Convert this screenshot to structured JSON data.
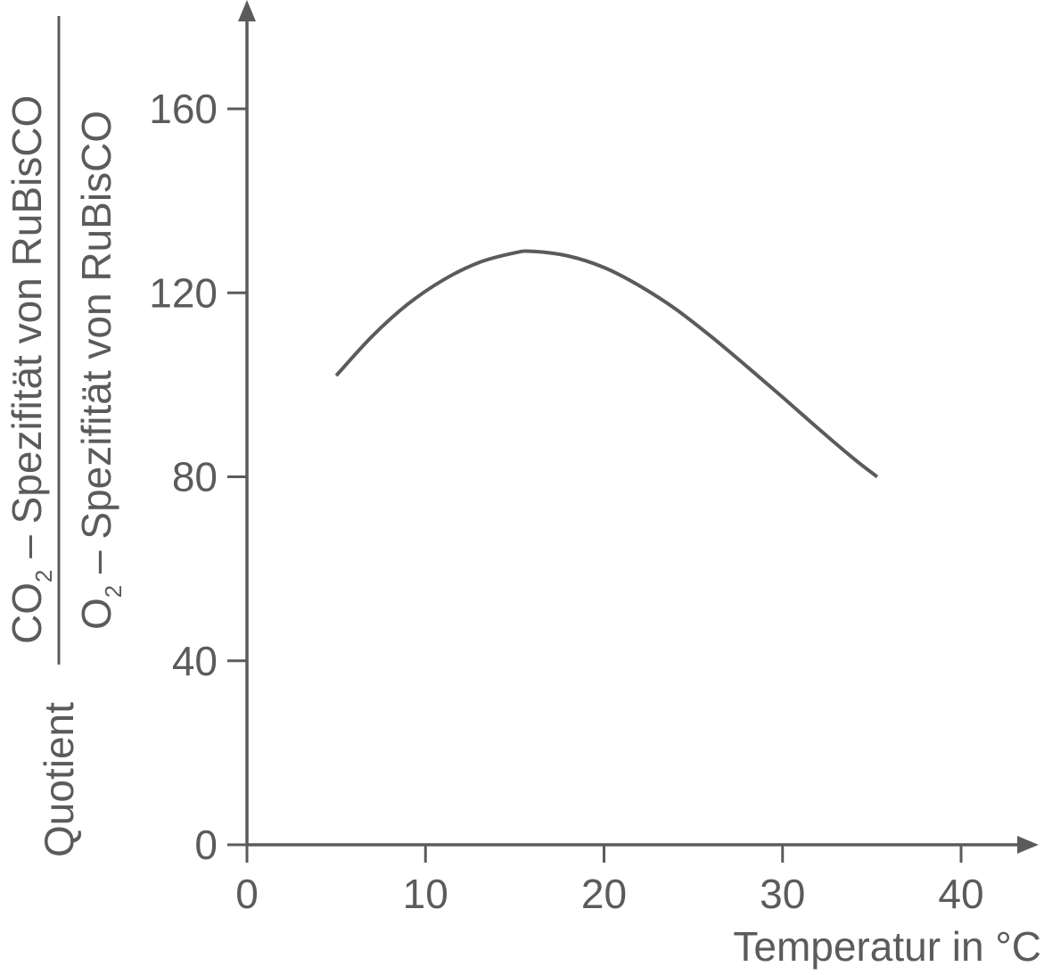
{
  "chart_data": {
    "type": "line",
    "xlabel": "Temperatur in °C",
    "ylabel": {
      "prefix": "Quotient",
      "numerator": {
        "base": "CO",
        "sub": "2",
        "rest": " – Spezifität von RuBisCO"
      },
      "denominator": {
        "base": "O",
        "sub": "2",
        "rest": " – Spezifität von RuBisCO"
      }
    },
    "xlim": [
      0,
      40
    ],
    "ylim": [
      0,
      160
    ],
    "x_ticks": [
      "0",
      "10",
      "20",
      "30",
      "40"
    ],
    "y_ticks": [
      "0",
      "40",
      "80",
      "120",
      "160"
    ],
    "grid": false,
    "series": [
      {
        "x": [
          5,
          7,
          9,
          11,
          13,
          15,
          16,
          18,
          20,
          22,
          24,
          26,
          28,
          30,
          32,
          34,
          35.3
        ],
        "y": [
          102,
          110.5,
          117.5,
          122.8,
          126.6,
          128.7,
          129,
          128,
          125.5,
          121.5,
          116.5,
          110.5,
          104,
          97.3,
          90.5,
          83.9,
          80
        ]
      }
    ],
    "colors": {
      "axis": "#5b5b5b",
      "line": "#5b5b5b",
      "text": "#5b5b5b"
    }
  }
}
